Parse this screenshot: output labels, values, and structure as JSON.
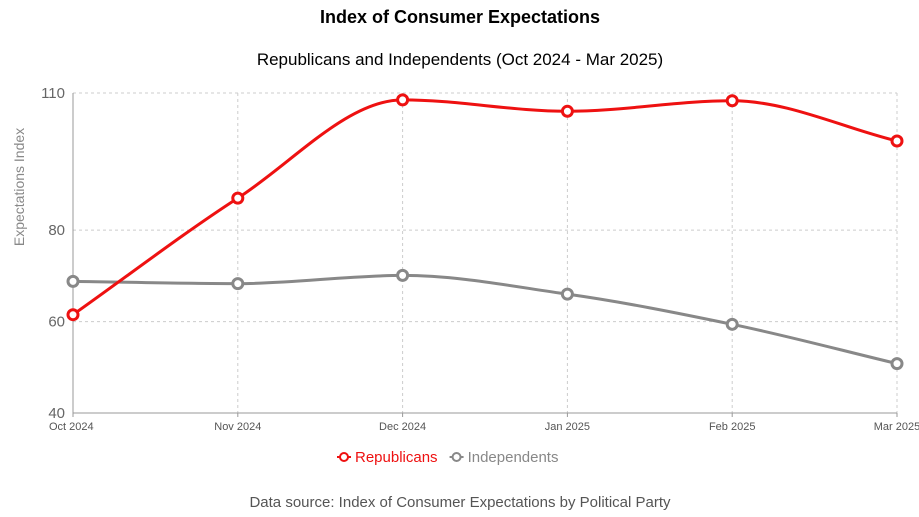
{
  "chart_data": {
    "type": "line",
    "title": "Index of Consumer Expectations",
    "subtitle": "Republicans and Independents (Oct 2024 - Mar 2025)",
    "xlabel": "",
    "ylabel": "Expectations Index",
    "categories": [
      "Oct 2024",
      "Nov 2024",
      "Dec 2024",
      "Jan 2025",
      "Feb 2025",
      "Mar 2025"
    ],
    "ylim": [
      40,
      110
    ],
    "yticks": [
      40,
      60,
      80,
      110
    ],
    "series": [
      {
        "name": "Republicans",
        "color": "#ee1111",
        "values": [
          61.5,
          87,
          108.5,
          106,
          108.3,
          99.5
        ]
      },
      {
        "name": "Independents",
        "color": "#888888",
        "values": [
          68.8,
          68.3,
          70.1,
          66,
          59.4,
          50.8
        ]
      }
    ],
    "grid": true,
    "legend_position": "bottom-center",
    "footer": "Data source: Index of Consumer Expectations by Political Party"
  }
}
